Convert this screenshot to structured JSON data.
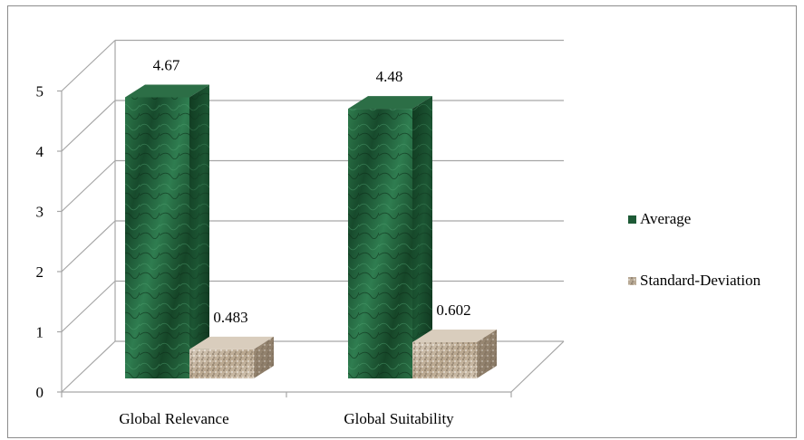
{
  "chart_data": {
    "type": "bar",
    "title": "",
    "xlabel": "",
    "ylabel": "",
    "categories": [
      "Global Relevance",
      "Global Suitability"
    ],
    "series": [
      {
        "name": "Average",
        "values": [
          4.67,
          4.48
        ],
        "data_labels": [
          "4.67",
          "4.48"
        ],
        "color": "#1e5a36"
      },
      {
        "name": "Standard-Deviation",
        "values": [
          0.483,
          0.602
        ],
        "data_labels": [
          "0.483",
          "0.602"
        ],
        "color": "#c9b8a3"
      }
    ],
    "ylim": [
      0,
      5
    ],
    "yticks": [
      "0",
      "1",
      "2",
      "3",
      "4",
      "5"
    ],
    "grid": true,
    "three_d": true,
    "legend_position": "right"
  }
}
